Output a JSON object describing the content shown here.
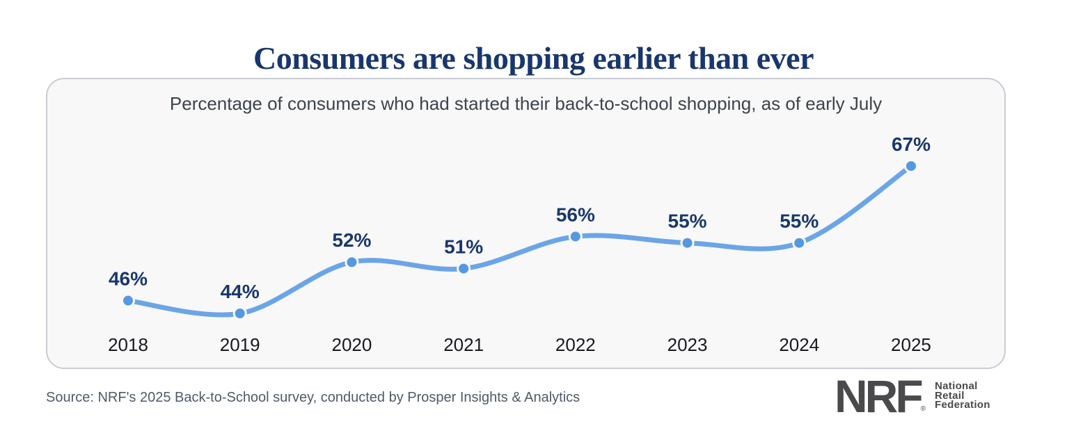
{
  "title": "Consumers are shopping earlier than ever",
  "chart": {
    "subtitle": "Percentage of consumers who had started their back-to-school shopping, as of early July"
  },
  "chart_data": {
    "type": "line",
    "title": "Consumers are shopping earlier than ever",
    "subtitle": "Percentage of consumers who had started their back-to-school shopping, as of early July",
    "categories": [
      "2018",
      "2019",
      "2020",
      "2021",
      "2022",
      "2023",
      "2024",
      "2025"
    ],
    "values": [
      46,
      44,
      52,
      51,
      56,
      55,
      55,
      67
    ],
    "labels": [
      "46%",
      "44%",
      "52%",
      "51%",
      "56%",
      "55%",
      "55%",
      "67%"
    ],
    "label_suffix": "%",
    "ylim": [
      40,
      72
    ],
    "grid": false,
    "legend": false,
    "xlabel": "",
    "ylabel": "",
    "line_color": "#6BA5E7",
    "dot_color": "#5598E2",
    "value_label_color": "#19376D",
    "panel_background": "#F8F8F9"
  },
  "footer": {
    "source": "Source: NRF's 2025 Back-to-School survey, conducted by Prosper Insights & Analytics",
    "logo": {
      "wordmark": "NRF",
      "registered": "®",
      "lines": [
        "National",
        "Retail",
        "Federation"
      ]
    }
  },
  "colors": {
    "title_navy": "#19376D",
    "line_blue": "#6BA5E7",
    "dot_blue": "#5598E2",
    "panel_border": "#C9CCD3",
    "panel_bg": "#F8F8F9",
    "logo_gray": "#4A4A4C"
  }
}
